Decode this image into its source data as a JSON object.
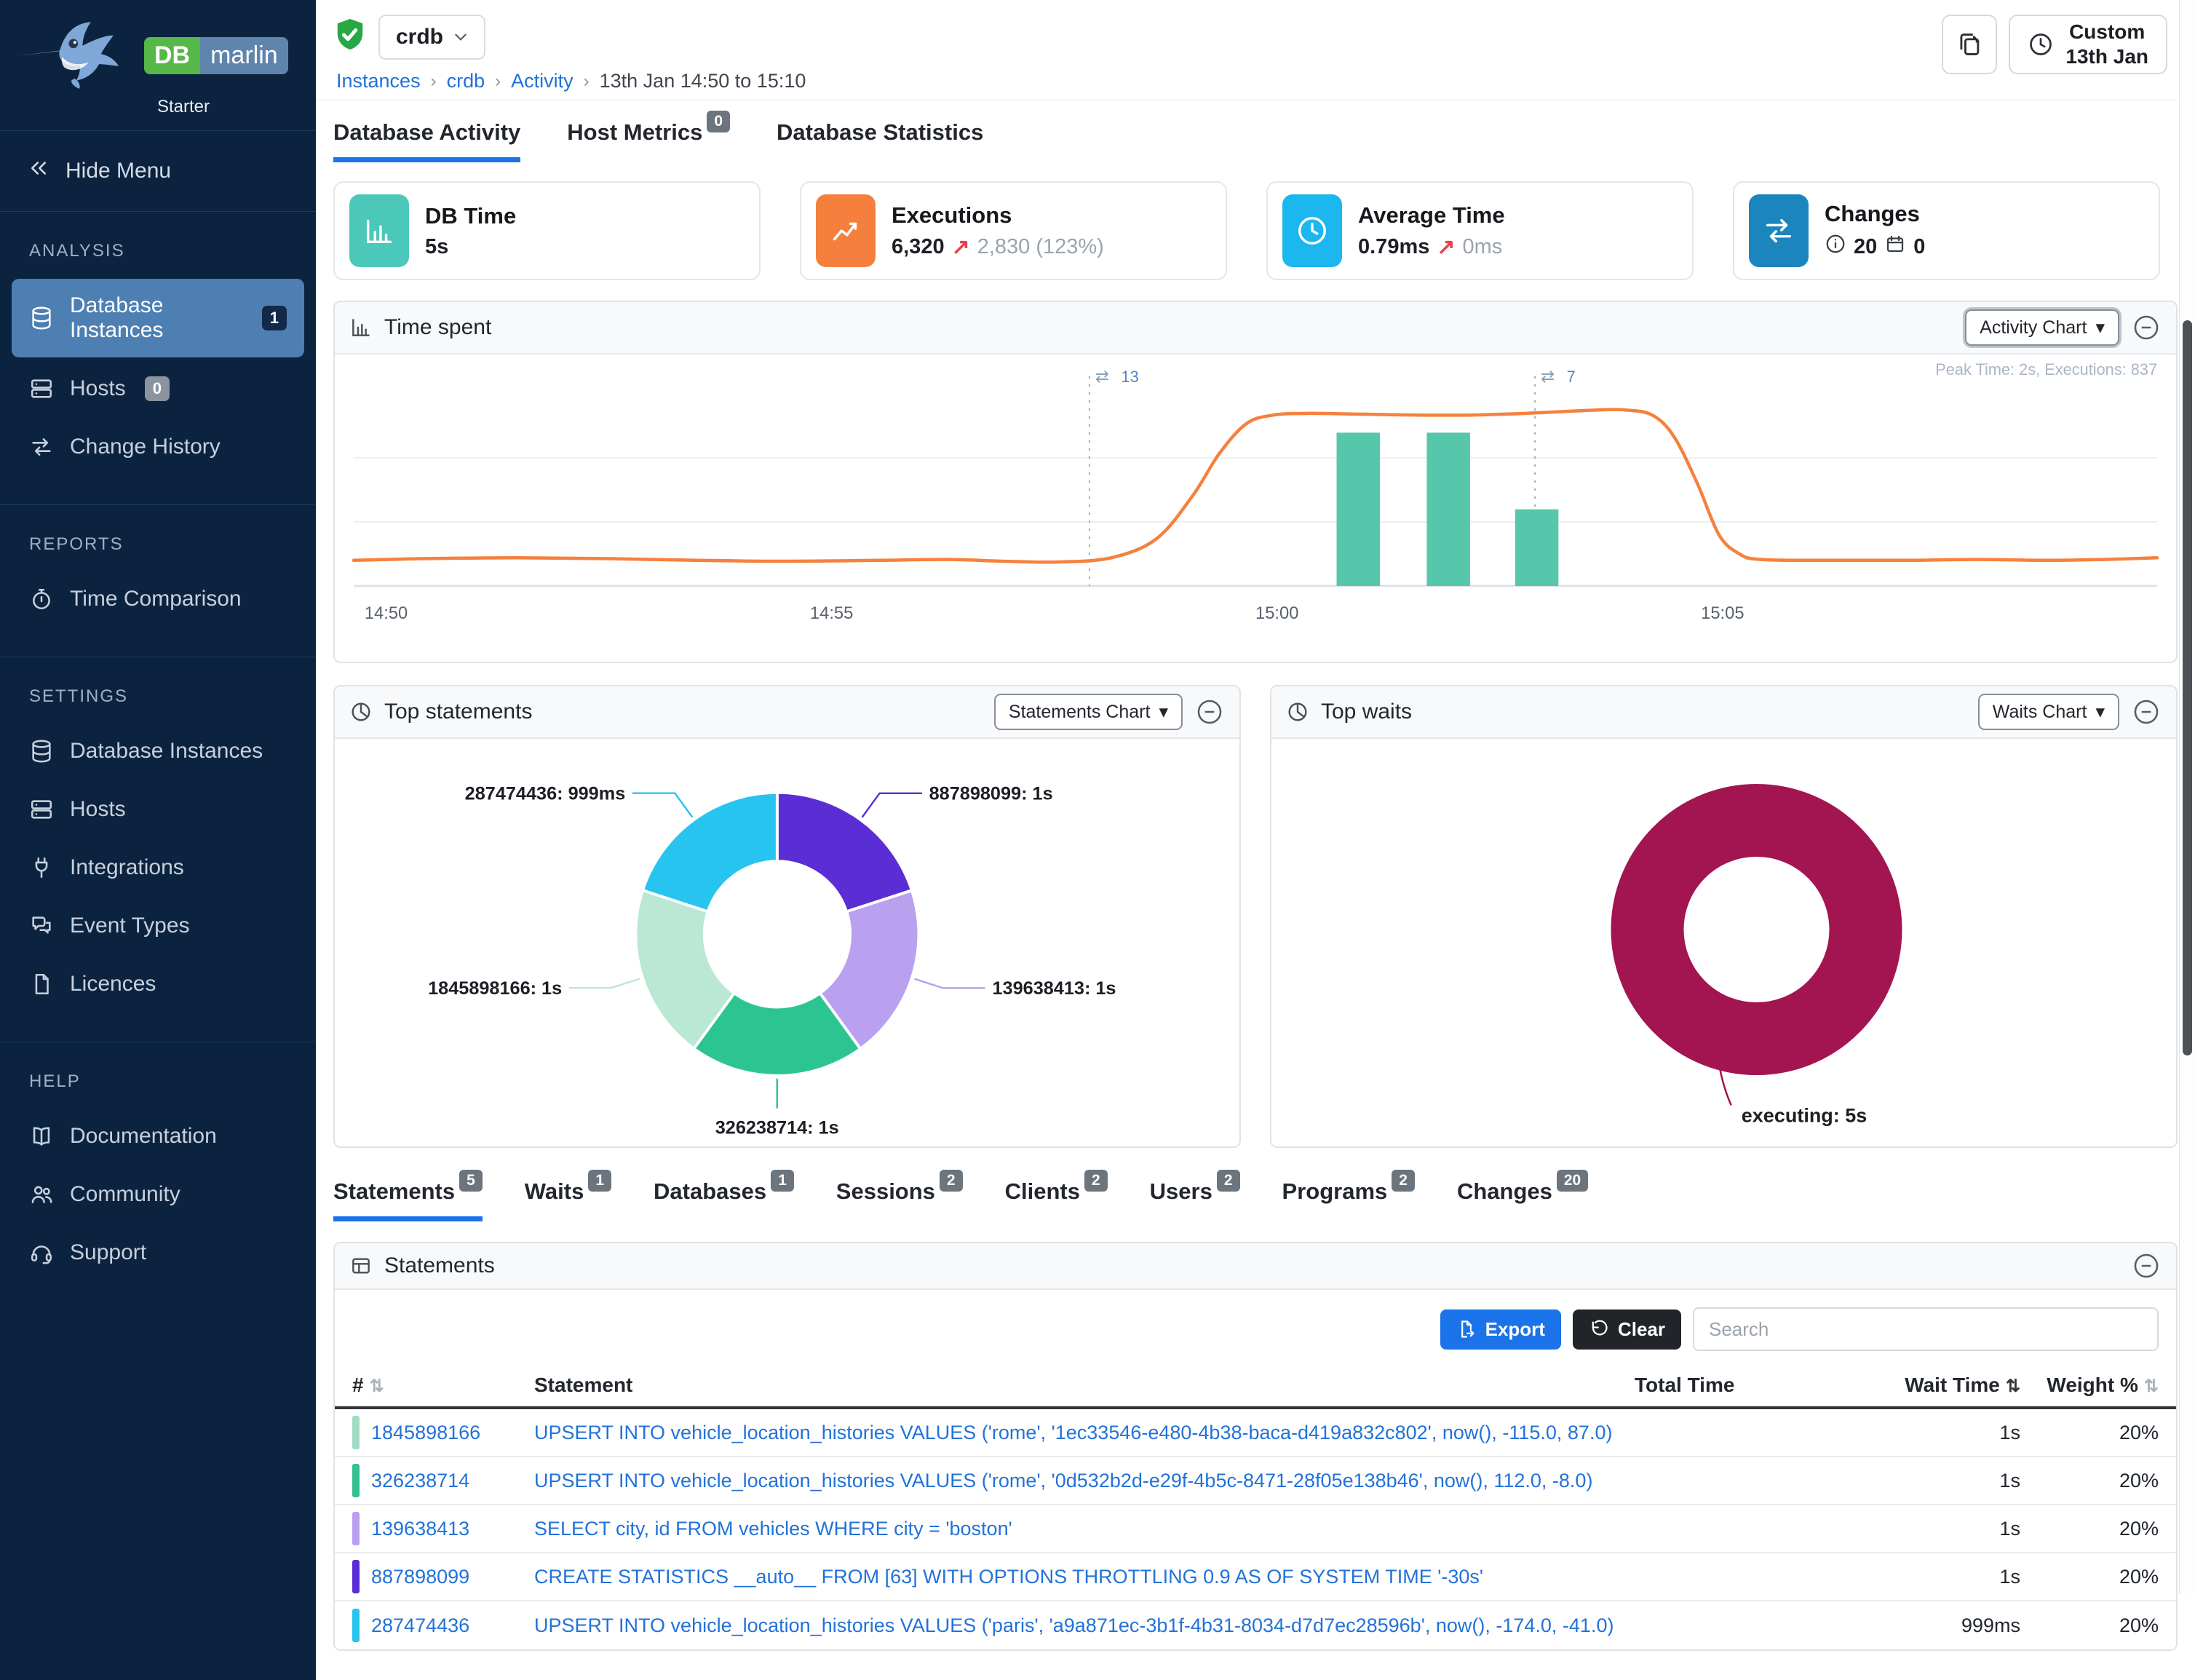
{
  "sidebar": {
    "brand": {
      "db": "DB",
      "marlin": "marlin",
      "edition": "Starter"
    },
    "hide_menu_label": "Hide Menu",
    "sections": [
      {
        "title": "ANALYSIS",
        "items": [
          {
            "label": "Database Instances",
            "icon": "database-icon",
            "badge": "1",
            "badge_style": "dark",
            "active": true
          },
          {
            "label": "Hosts",
            "icon": "server-icon",
            "badge": "0",
            "badge_style": "gray"
          },
          {
            "label": "Change History",
            "icon": "swap-icon"
          }
        ]
      },
      {
        "title": "REPORTS",
        "items": [
          {
            "label": "Time Comparison",
            "icon": "stopwatch-icon"
          }
        ]
      },
      {
        "title": "SETTINGS",
        "items": [
          {
            "label": "Database Instances",
            "icon": "database-icon"
          },
          {
            "label": "Hosts",
            "icon": "server-icon"
          },
          {
            "label": "Integrations",
            "icon": "plug-icon"
          },
          {
            "label": "Event Types",
            "icon": "chat-icon"
          },
          {
            "label": "Licences",
            "icon": "file-icon"
          }
        ]
      },
      {
        "title": "HELP",
        "items": [
          {
            "label": "Documentation",
            "icon": "book-icon"
          },
          {
            "label": "Community",
            "icon": "people-icon"
          },
          {
            "label": "Support",
            "icon": "headset-icon"
          }
        ]
      }
    ]
  },
  "topbar": {
    "instance": "crdb",
    "breadcrumb": [
      {
        "label": "Instances",
        "link": true
      },
      {
        "label": "crdb",
        "link": true
      },
      {
        "label": "Activity",
        "link": true
      },
      {
        "label": "13th Jan 14:50 to 15:10",
        "link": false
      }
    ],
    "time_button": {
      "line1": "Custom",
      "line2": "13th Jan"
    }
  },
  "tabs": [
    {
      "label": "Database Activity",
      "active": true
    },
    {
      "label": "Host Metrics",
      "badge": "0"
    },
    {
      "label": "Database Statistics"
    }
  ],
  "cards": [
    {
      "title": "DB Time",
      "icon": "bar-chart-icon",
      "icon_bg": "#4cc8bb",
      "segments": [
        {
          "kind": "strong",
          "text": "5s"
        }
      ]
    },
    {
      "title": "Executions",
      "icon": "line-chart-icon",
      "icon_bg": "#f5803e",
      "segments": [
        {
          "kind": "strong",
          "text": "6,320"
        },
        {
          "kind": "arrow",
          "text": "↗"
        },
        {
          "kind": "muted",
          "text": "2,830 (123%)"
        }
      ]
    },
    {
      "title": "Average Time",
      "icon": "clock-icon",
      "icon_bg": "#1bb7ee",
      "segments": [
        {
          "kind": "strong",
          "text": "0.79ms"
        },
        {
          "kind": "arrow",
          "text": "↗"
        },
        {
          "kind": "muted",
          "text": "0ms"
        }
      ]
    },
    {
      "title": "Changes",
      "icon": "swap-icon",
      "icon_bg": "#1b86be",
      "segments": [
        {
          "kind": "icon-info"
        },
        {
          "kind": "strong",
          "text": "20"
        },
        {
          "kind": "icon-calendar"
        },
        {
          "kind": "strong",
          "text": "0"
        }
      ]
    }
  ],
  "time_spent_panel": {
    "title": "Time spent",
    "chart_button": "Statements Chart",
    "chart_button_label": "Activity Chart"
  },
  "top_statements_panel": {
    "title": "Top statements",
    "chart_button_label": "Statements Chart"
  },
  "top_waits_panel": {
    "title": "Top waits",
    "chart_button_label": "Waits Chart"
  },
  "chart_data": [
    {
      "type": "line+bar",
      "title": "Time spent",
      "x_range": [
        "14:50",
        "15:10"
      ],
      "x_ticks": [
        {
          "f": 0.018,
          "label": "14:50"
        },
        {
          "f": 0.265,
          "label": "14:55"
        },
        {
          "f": 0.512,
          "label": "15:00"
        },
        {
          "f": 0.759,
          "label": "15:05"
        }
      ],
      "y_max_seconds": 2.3,
      "grid_values": [
        0.75,
        1.5
      ],
      "peak_label": "Peak Time: 2s, Executions: 837",
      "line": {
        "name": "DB Time",
        "color": "#f5813e",
        "points": [
          [
            0,
            0.3
          ],
          [
            0.04,
            0.32
          ],
          [
            0.09,
            0.33
          ],
          [
            0.14,
            0.32
          ],
          [
            0.19,
            0.3
          ],
          [
            0.24,
            0.29
          ],
          [
            0.29,
            0.3
          ],
          [
            0.33,
            0.31
          ],
          [
            0.36,
            0.29
          ],
          [
            0.39,
            0.28
          ],
          [
            0.42,
            0.33
          ],
          [
            0.445,
            0.55
          ],
          [
            0.465,
            1.05
          ],
          [
            0.48,
            1.55
          ],
          [
            0.495,
            1.9
          ],
          [
            0.51,
            2.0
          ],
          [
            0.53,
            2.02
          ],
          [
            0.56,
            2.01
          ],
          [
            0.59,
            2.0
          ],
          [
            0.62,
            2.0
          ],
          [
            0.65,
            2.02
          ],
          [
            0.67,
            2.04
          ],
          [
            0.69,
            2.06
          ],
          [
            0.705,
            2.06
          ],
          [
            0.72,
            2.0
          ],
          [
            0.732,
            1.75
          ],
          [
            0.745,
            1.2
          ],
          [
            0.757,
            0.6
          ],
          [
            0.768,
            0.38
          ],
          [
            0.78,
            0.31
          ],
          [
            0.82,
            0.3
          ],
          [
            0.86,
            0.3
          ],
          [
            0.9,
            0.31
          ],
          [
            0.94,
            0.3
          ],
          [
            0.97,
            0.31
          ],
          [
            1,
            0.33
          ]
        ]
      },
      "bars": {
        "name": "Executions",
        "color": "#57c7ac",
        "width_f": 0.024,
        "items": [
          {
            "x_f": 0.557,
            "height_f": 0.78,
            "executions": 800
          },
          {
            "x_f": 0.607,
            "height_f": 0.78,
            "executions": 800
          },
          {
            "x_f": 0.656,
            "height_f": 0.39,
            "executions": 390
          }
        ]
      },
      "change_markers": [
        {
          "x_f": 0.408,
          "count": "13"
        },
        {
          "x_f": 0.655,
          "count": "7"
        }
      ]
    },
    {
      "type": "pie",
      "title": "Top statements",
      "slices": [
        {
          "label": "887898099",
          "value_label": "1s",
          "seconds": 1,
          "color": "#5a2dd5"
        },
        {
          "label": "139638413",
          "value_label": "1s",
          "seconds": 1,
          "color": "#b9a1f0"
        },
        {
          "label": "326238714",
          "value_label": "1s",
          "seconds": 1,
          "color": "#2cc591"
        },
        {
          "label": "1845898166",
          "value_label": "1s",
          "seconds": 1,
          "color": "#bae8d4"
        },
        {
          "label": "287474436",
          "value_label": "999ms",
          "seconds": 0.999,
          "color": "#28c4f0"
        }
      ]
    },
    {
      "type": "pie",
      "title": "Top waits",
      "slices": [
        {
          "label": "executing",
          "value_label": "5s",
          "seconds": 5,
          "color": "#a21551"
        }
      ]
    }
  ],
  "lower_tabs": [
    {
      "label": "Statements",
      "badge": "5",
      "active": true
    },
    {
      "label": "Waits",
      "badge": "1"
    },
    {
      "label": "Databases",
      "badge": "1"
    },
    {
      "label": "Sessions",
      "badge": "2"
    },
    {
      "label": "Clients",
      "badge": "2"
    },
    {
      "label": "Users",
      "badge": "2"
    },
    {
      "label": "Programs",
      "badge": "2"
    },
    {
      "label": "Changes",
      "badge": "20"
    }
  ],
  "statements_panel": {
    "title": "Statements",
    "export_label": "Export",
    "clear_label": "Clear",
    "search_placeholder": "Search",
    "columns": {
      "id": "#",
      "statement": "Statement",
      "total_time": "Total Time",
      "wait_time": "Wait Time",
      "weight": "Weight %"
    },
    "rows": [
      {
        "chip": "#9fdcc3",
        "id": "1845898166",
        "statement": "UPSERT INTO vehicle_location_histories VALUES ('rome', '1ec33546-e480-4b38-baca-d419a832c802', now(), -115.0, 87.0)",
        "wait_time": "1s",
        "weight": "20%"
      },
      {
        "chip": "#35c08f",
        "id": "326238714",
        "statement": "UPSERT INTO vehicle_location_histories VALUES ('rome', '0d532b2d-e29f-4b5c-8471-28f05e138b46', now(), 112.0, -8.0)",
        "wait_time": "1s",
        "weight": "20%"
      },
      {
        "chip": "#b9a1f0",
        "id": "139638413",
        "statement": "SELECT city, id FROM vehicles WHERE city = 'boston'",
        "wait_time": "1s",
        "weight": "20%"
      },
      {
        "chip": "#5a2dd5",
        "id": "887898099",
        "statement": "CREATE STATISTICS __auto__ FROM [63] WITH OPTIONS THROTTLING 0.9 AS OF SYSTEM TIME '-30s'",
        "wait_time": "1s",
        "weight": "20%"
      },
      {
        "chip": "#28c4f0",
        "id": "287474436",
        "statement": "UPSERT INTO vehicle_location_histories VALUES ('paris', 'a9a871ec-3b1f-4b31-8034-d7d7ec28596b', now(), -174.0, -41.0)",
        "wait_time": "999ms",
        "weight": "20%"
      }
    ],
    "total_time_bar_color": "#a21551"
  }
}
